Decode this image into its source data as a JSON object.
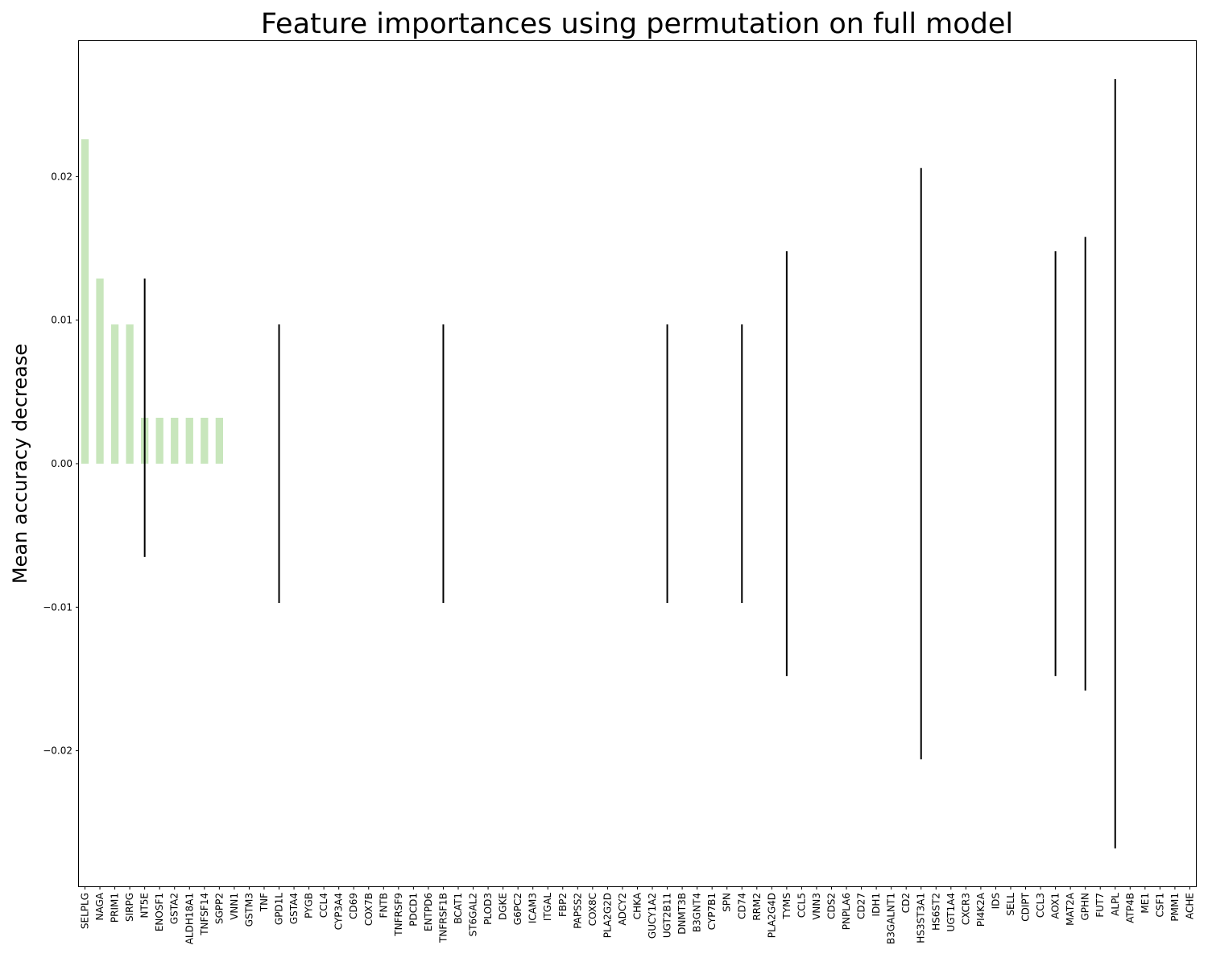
{
  "chart_data": {
    "type": "bar",
    "title": "Feature importances using permutation on full model",
    "xlabel": "",
    "ylabel": "Mean accuracy decrease",
    "ylim": [
      -0.0295,
      0.0295
    ],
    "yticks": [
      "0.02",
      "0.01",
      "0.00",
      "−0.01",
      "−0.02"
    ],
    "ytick_values": [
      0.02,
      0.01,
      0.0,
      -0.01,
      -0.02
    ],
    "grid": false,
    "legend": "none",
    "colors": {
      "bar": "#c8e6bc",
      "error": "#000000",
      "axis": "#000000"
    },
    "categories": [
      "SELPLG",
      "NAGA",
      "PRIM1",
      "SIRPG",
      "NT5E",
      "ENOSF1",
      "GSTA2",
      "ALDH18A1",
      "TNFSF14",
      "SGPP2",
      "VNN1",
      "GSTM3",
      "TNF",
      "GPD1L",
      "GSTA4",
      "PYGB",
      "CCL4",
      "CYP3A4",
      "CD69",
      "COX7B",
      "FNTB",
      "TNFRSF9",
      "PDCD1",
      "ENTPD6",
      "TNFRSF1B",
      "BCAT1",
      "ST6GAL2",
      "PLOD3",
      "DGKE",
      "G6PC2",
      "ICAM3",
      "ITGAL",
      "FBP2",
      "PAPSS2",
      "COX8C",
      "PLA2G2D",
      "ADCY2",
      "CHKA",
      "GUCY1A2",
      "UGT2B11",
      "DNMT3B",
      "B3GNT4",
      "CYP7B1",
      "SPN",
      "CD74",
      "RRM2",
      "PLA2G4D",
      "TYMS",
      "CCL5",
      "VNN3",
      "CDS2",
      "PNPLA6",
      "CD27",
      "IDH1",
      "B3GALNT1",
      "CD2",
      "HS3ST3A1",
      "HS6ST2",
      "UGT1A4",
      "CXCR3",
      "PI4K2A",
      "IDS",
      "SELL",
      "CDIPT",
      "CCL3",
      "AOX1",
      "MAT2A",
      "GPHN",
      "FUT7",
      "ALPL",
      "ATP4B",
      "ME1",
      "CSF1",
      "PMM1",
      "ACHE"
    ],
    "values": [
      0.0226,
      0.0129,
      0.0097,
      0.0097,
      0.0032,
      0.0032,
      0.0032,
      0.0032,
      0.0032,
      0.0032,
      0,
      0,
      0,
      0,
      0,
      0,
      0,
      0,
      0,
      0,
      0,
      0,
      0,
      0,
      0,
      0,
      0,
      0,
      0,
      0,
      0,
      0,
      0,
      0,
      0,
      0,
      0,
      0,
      0,
      0,
      0,
      0,
      0,
      0,
      0,
      0,
      0,
      0,
      0,
      0,
      0,
      0,
      0,
      0,
      0,
      0,
      0,
      0,
      0,
      0,
      0,
      0,
      0,
      0,
      0,
      0,
      0,
      0,
      0,
      0,
      0,
      0,
      0,
      0,
      0
    ],
    "errors": [
      0,
      0,
      0,
      0,
      0.0097,
      0,
      0,
      0,
      0,
      0,
      0,
      0,
      0,
      0.0097,
      0,
      0,
      0,
      0,
      0,
      0,
      0,
      0,
      0,
      0,
      0.0097,
      0,
      0,
      0,
      0,
      0,
      0,
      0,
      0,
      0,
      0,
      0,
      0,
      0,
      0,
      0.0097,
      0,
      0,
      0,
      0,
      0.0097,
      0,
      0,
      0.0148,
      0,
      0,
      0,
      0,
      0,
      0,
      0,
      0,
      0.0206,
      0,
      0,
      0,
      0,
      0,
      0,
      0,
      0,
      0.0148,
      0,
      0.0158,
      0,
      0.0268,
      0,
      0,
      0,
      0,
      0
    ]
  }
}
